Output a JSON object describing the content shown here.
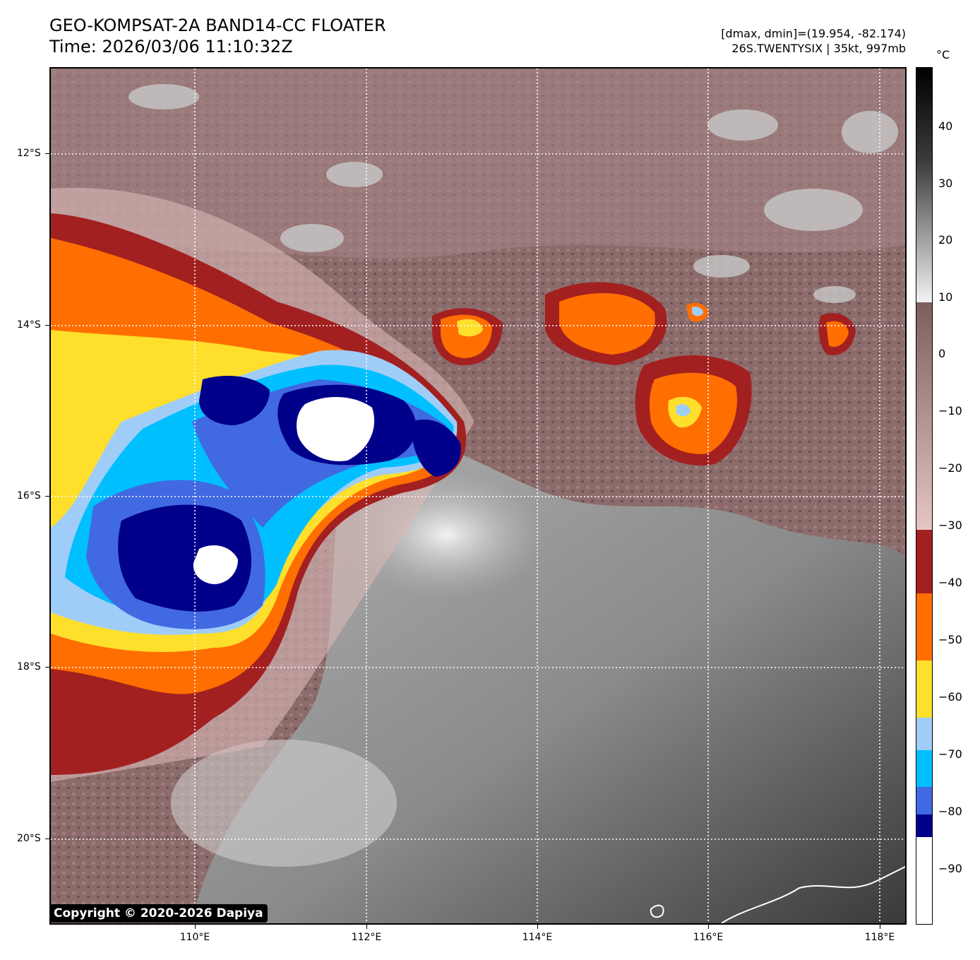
{
  "header": {
    "title_line1": "GEO-KOMPSAT-2A BAND14-CC FLOATER",
    "title_line2": "Time: 2026/03/06 11:10:32Z",
    "range_text": "[dmax, dmin]=(19.954, -82.174)",
    "storm_text": "26S.TWENTYSIX | 35kt, 997mb"
  },
  "map": {
    "lat_labels": [
      "12°S",
      "14°S",
      "16°S",
      "18°S",
      "20°S"
    ],
    "lon_labels": [
      "110°E",
      "112°E",
      "114°E",
      "116°E",
      "118°E"
    ],
    "copyright": "Copyright © 2020-2026 Dapiya"
  },
  "colorbar": {
    "unit": "°C",
    "tick_labels": [
      "40",
      "30",
      "20",
      "10",
      "0",
      "−10",
      "−20",
      "−30",
      "−40",
      "−50",
      "−60",
      "−70",
      "−80",
      "−90"
    ],
    "colors": {
      "cold_white": "#ffffff",
      "navy": "#00008b",
      "royal_blue": "#4169e1",
      "deep_sky_blue": "#00bfff",
      "light_blue": "#a0cdf8",
      "gold": "#fddf2c",
      "orange": "#ff6e00",
      "dark_red": "#a32020",
      "pink_mauve": "#e8c5c5",
      "brown_mauve": "#7f5d5d",
      "gray_white": "#f3f3f3",
      "black": "#000000"
    }
  }
}
